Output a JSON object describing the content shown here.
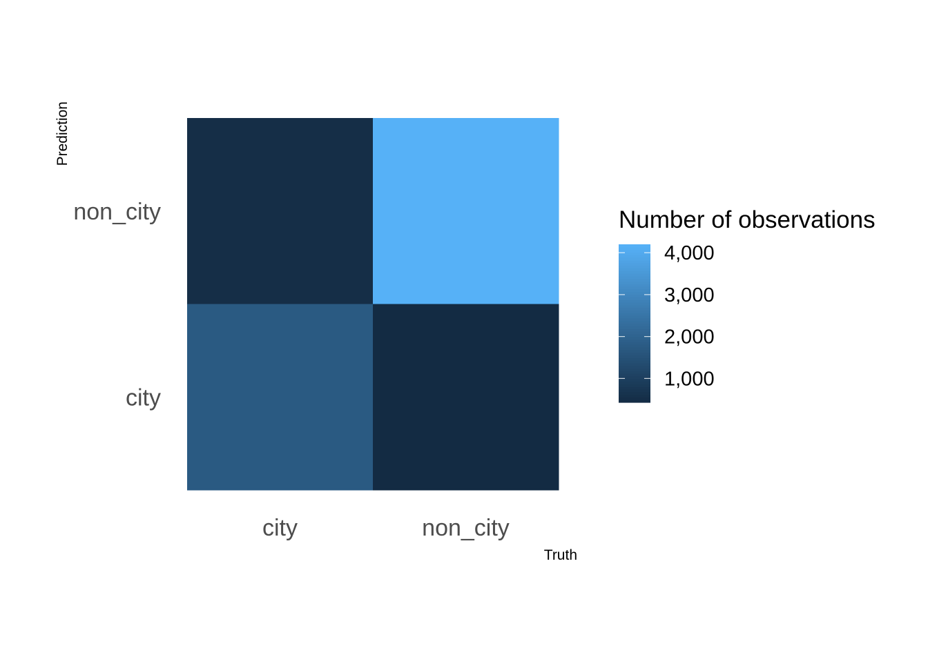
{
  "chart_data": {
    "type": "heatmap",
    "xlabel": "Truth",
    "ylabel": "Prediction",
    "x_categories": [
      "city",
      "non_city"
    ],
    "y_categories": [
      "city",
      "non_city"
    ],
    "cells": [
      {
        "x": "city",
        "y": "non_city",
        "value": 520
      },
      {
        "x": "non_city",
        "y": "non_city",
        "value": 4200
      },
      {
        "x": "city",
        "y": "city",
        "value": 1750
      },
      {
        "x": "non_city",
        "y": "city",
        "value": 430
      }
    ],
    "legend": {
      "title": "Number of observations",
      "placement": "right",
      "min": 430,
      "max": 4200,
      "breaks": [
        1000,
        2000,
        3000,
        4000
      ],
      "break_labels": [
        "1,000",
        "2,000",
        "3,000",
        "4,000"
      ],
      "low_color": "#132B43",
      "high_color": "#56B1F7"
    }
  }
}
